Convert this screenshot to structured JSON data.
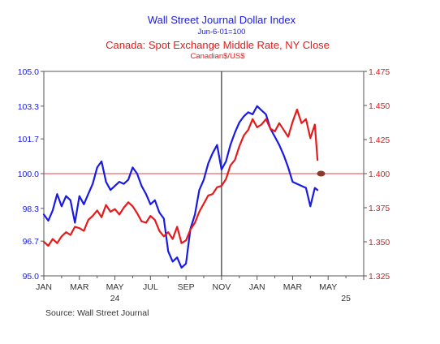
{
  "chart_data": {
    "type": "line",
    "title": "Wall Street Journal Dollar Index",
    "subtitle": "Jun-6-01=100",
    "title2": "Canada: Spot Exchange Middle Rate, NY Close",
    "subtitle2": "Canadian$/US$",
    "source": "Source:  Wall Street Journal",
    "x_ticks": [
      "JAN",
      "MAR",
      "MAY",
      "JUL",
      "SEP",
      "NOV",
      "JAN",
      "MAR",
      "MAY"
    ],
    "year_labels": [
      {
        "label": "24",
        "month_index": 4
      },
      {
        "label": "25",
        "month_index": 17
      }
    ],
    "xlim": [
      0,
      18
    ],
    "y_left": {
      "ticks": [
        "95.0",
        "96.7",
        "98.3",
        "100.0",
        "101.7",
        "103.3",
        "105.0"
      ],
      "ylim": [
        95.0,
        105.0
      ]
    },
    "y_right": {
      "ticks": [
        "1.325",
        "1.350",
        "1.375",
        "1.400",
        "1.425",
        "1.450",
        "1.475"
      ],
      "ylim": [
        1.325,
        1.475
      ]
    },
    "reference_line": {
      "axis": "left",
      "value": 100.0,
      "color": "#e64040"
    },
    "vertical_marker": {
      "x": 10.0,
      "color": "#333333"
    },
    "endpoint_marker": {
      "x": 15.6,
      "y_right": 1.4,
      "color": "#8b3a2a"
    },
    "grid": false,
    "series": [
      {
        "name": "Wall Street Journal Dollar Index",
        "axis": "left",
        "color": "#1a1ae6",
        "x": [
          0,
          0.25,
          0.5,
          0.75,
          1.0,
          1.25,
          1.5,
          1.75,
          2.0,
          2.25,
          2.5,
          2.75,
          3.0,
          3.25,
          3.5,
          3.75,
          4.0,
          4.25,
          4.5,
          4.75,
          5.0,
          5.25,
          5.5,
          5.75,
          6.0,
          6.25,
          6.5,
          6.75,
          7.0,
          7.25,
          7.5,
          7.75,
          8.0,
          8.25,
          8.5,
          8.75,
          9.0,
          9.25,
          9.5,
          9.75,
          10.0,
          10.25,
          10.5,
          10.75,
          11.0,
          11.25,
          11.5,
          11.75,
          12.0,
          12.25,
          12.5,
          12.75,
          13.0,
          13.25,
          13.5,
          13.75,
          14.0,
          14.25,
          14.5,
          14.75,
          15.0,
          15.25,
          15.4
        ],
        "values": [
          98.0,
          97.7,
          98.2,
          99.0,
          98.4,
          98.9,
          98.7,
          97.6,
          98.9,
          98.5,
          99.0,
          99.5,
          100.3,
          100.6,
          99.6,
          99.2,
          99.4,
          99.6,
          99.5,
          99.7,
          100.3,
          100.0,
          99.4,
          99.0,
          98.5,
          98.7,
          98.1,
          97.8,
          96.2,
          95.7,
          95.9,
          95.4,
          95.6,
          97.3,
          98.0,
          99.2,
          99.7,
          100.5,
          101.0,
          101.4,
          100.2,
          100.6,
          101.4,
          102.0,
          102.5,
          102.8,
          103.0,
          102.9,
          103.3,
          103.1,
          102.9,
          102.2,
          101.8,
          101.4,
          100.9,
          100.3,
          99.6,
          99.5,
          99.4,
          99.3,
          98.4,
          99.3,
          99.2
        ]
      },
      {
        "name": "Canada: Spot Exchange Middle Rate, NY Close",
        "axis": "right",
        "color": "#e61a1a",
        "x": [
          0,
          0.25,
          0.5,
          0.75,
          1.0,
          1.25,
          1.5,
          1.75,
          2.0,
          2.25,
          2.5,
          2.75,
          3.0,
          3.25,
          3.5,
          3.75,
          4.0,
          4.25,
          4.5,
          4.75,
          5.0,
          5.25,
          5.5,
          5.75,
          6.0,
          6.25,
          6.5,
          6.75,
          7.0,
          7.25,
          7.5,
          7.75,
          8.0,
          8.25,
          8.5,
          8.75,
          9.0,
          9.25,
          9.5,
          9.75,
          10.0,
          10.25,
          10.5,
          10.75,
          11.0,
          11.25,
          11.5,
          11.75,
          12.0,
          12.25,
          12.5,
          12.75,
          13.0,
          13.25,
          13.5,
          13.75,
          14.0,
          14.25,
          14.5,
          14.75,
          15.0,
          15.25,
          15.4
        ],
        "values": [
          1.35,
          1.347,
          1.352,
          1.349,
          1.354,
          1.357,
          1.355,
          1.361,
          1.36,
          1.358,
          1.366,
          1.369,
          1.373,
          1.368,
          1.377,
          1.372,
          1.374,
          1.37,
          1.375,
          1.379,
          1.376,
          1.371,
          1.365,
          1.364,
          1.369,
          1.366,
          1.358,
          1.354,
          1.357,
          1.352,
          1.361,
          1.349,
          1.351,
          1.359,
          1.364,
          1.372,
          1.378,
          1.384,
          1.385,
          1.39,
          1.391,
          1.396,
          1.406,
          1.41,
          1.42,
          1.428,
          1.432,
          1.44,
          1.434,
          1.436,
          1.44,
          1.433,
          1.431,
          1.437,
          1.432,
          1.427,
          1.438,
          1.447,
          1.437,
          1.44,
          1.426,
          1.436,
          1.41
        ]
      }
    ]
  }
}
